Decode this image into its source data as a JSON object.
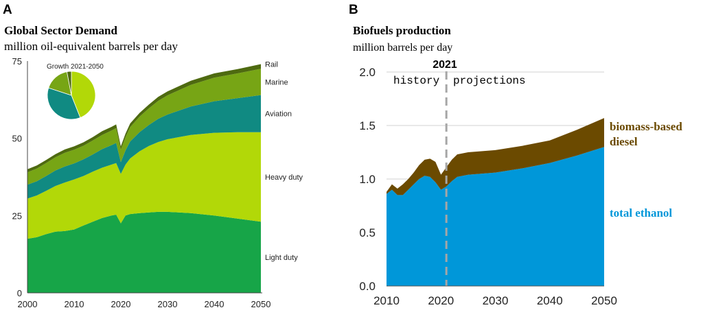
{
  "panel_a": {
    "letter": "A",
    "title": "Global Sector Demand",
    "subtitle": "million oil-equivalent barrels per day",
    "inset_label": "Growth 2021-2050",
    "colors": {
      "light_duty": "#17a548",
      "heavy_duty": "#b2d808",
      "aviation": "#108a82",
      "marine": "#77a515",
      "rail": "#4e6a10",
      "pie_outline": "#ffffff"
    }
  },
  "panel_b": {
    "letter": "B",
    "title": "Biofuels production",
    "subtitle": "million barrels per day",
    "divider_year_label": "2021",
    "history_label": "history",
    "projections_label": "projections",
    "series_labels": {
      "diesel_line1": "biomass-based",
      "diesel_line2": "diesel",
      "ethanol": "total ethanol"
    },
    "colors": {
      "ethanol": "#0097d9",
      "diesel": "#6b4a00",
      "diesel_label": "#6b4a00",
      "ethanol_label": "#0097d9",
      "divider": "#a6a6a6",
      "grid": "#d0d0d0"
    }
  },
  "chart_data": [
    {
      "id": "A",
      "type": "area",
      "stacked": true,
      "title": "Global Sector Demand",
      "subtitle": "million oil-equivalent barrels per day",
      "xlabel": "",
      "ylabel": "",
      "xlim": [
        2000,
        2050
      ],
      "ylim": [
        0,
        75
      ],
      "xticks": [
        2000,
        2010,
        2020,
        2030,
        2040,
        2050
      ],
      "yticks": [
        0,
        25,
        50,
        75
      ],
      "x": [
        2000,
        2002,
        2004,
        2006,
        2008,
        2010,
        2012,
        2014,
        2016,
        2018,
        2019,
        2020,
        2021,
        2022,
        2024,
        2026,
        2028,
        2030,
        2035,
        2040,
        2045,
        2050
      ],
      "series": [
        {
          "name": "Light duty",
          "values": [
            17.5,
            18.0,
            19.0,
            19.8,
            20.0,
            20.5,
            21.8,
            23.0,
            24.2,
            25.0,
            25.3,
            22.5,
            25.0,
            25.5,
            25.8,
            26.0,
            26.2,
            26.2,
            25.8,
            25.0,
            24.0,
            23.0
          ]
        },
        {
          "name": "Heavy duty",
          "values": [
            13.0,
            13.5,
            14.0,
            14.8,
            15.7,
            16.2,
            16.0,
            16.2,
            16.3,
            16.5,
            16.7,
            16.0,
            16.5,
            18.0,
            20.0,
            21.5,
            22.6,
            23.5,
            25.3,
            26.8,
            28.0,
            29.0
          ]
        },
        {
          "name": "Aviation",
          "values": [
            4.5,
            4.6,
            4.8,
            5.0,
            5.2,
            5.2,
            5.4,
            5.6,
            6.0,
            6.3,
            6.5,
            3.8,
            4.6,
            5.5,
            6.2,
            6.8,
            7.5,
            8.0,
            9.2,
            10.2,
            11.0,
            12.0
          ]
        },
        {
          "name": "Marine",
          "values": [
            4.0,
            4.1,
            4.2,
            4.3,
            4.4,
            4.4,
            4.4,
            4.5,
            4.6,
            4.7,
            4.8,
            4.0,
            4.3,
            4.6,
            5.0,
            5.4,
            5.8,
            6.2,
            7.0,
            7.6,
            8.0,
            8.5
          ]
        },
        {
          "name": "Rail",
          "values": [
            1.0,
            1.0,
            1.0,
            1.0,
            1.1,
            1.1,
            1.1,
            1.1,
            1.2,
            1.2,
            1.2,
            1.1,
            1.1,
            1.2,
            1.2,
            1.2,
            1.3,
            1.3,
            1.3,
            1.4,
            1.4,
            1.5
          ]
        }
      ],
      "inset_pie": {
        "title": "Growth 2021-2050",
        "slices": [
          {
            "name": "Heavy duty",
            "value": 44
          },
          {
            "name": "Aviation",
            "value": 36
          },
          {
            "name": "Marine",
            "value": 17
          },
          {
            "name": "Rail",
            "value": 3
          }
        ]
      }
    },
    {
      "id": "B",
      "type": "area",
      "stacked": true,
      "title": "Biofuels production",
      "subtitle": "million barrels per day",
      "xlabel": "",
      "ylabel": "",
      "xlim": [
        2010,
        2050
      ],
      "ylim": [
        0,
        2.0
      ],
      "xticks": [
        2010,
        2020,
        2030,
        2040,
        2050
      ],
      "yticks": [
        "0.0",
        "0.5",
        "1.0",
        "1.5",
        "2.0"
      ],
      "divider_year": 2021,
      "x": [
        2010,
        2011,
        2012,
        2013,
        2014,
        2015,
        2016,
        2017,
        2018,
        2019,
        2020,
        2021,
        2022,
        2023,
        2025,
        2030,
        2035,
        2040,
        2045,
        2050
      ],
      "series": [
        {
          "name": "total ethanol",
          "values": [
            0.86,
            0.9,
            0.85,
            0.85,
            0.9,
            0.95,
            1.0,
            1.03,
            1.02,
            0.97,
            0.9,
            0.93,
            0.98,
            1.02,
            1.04,
            1.06,
            1.1,
            1.15,
            1.22,
            1.3
          ]
        },
        {
          "name": "biomass-based diesel",
          "values": [
            0.02,
            0.05,
            0.06,
            0.1,
            0.1,
            0.11,
            0.13,
            0.15,
            0.17,
            0.19,
            0.14,
            0.18,
            0.2,
            0.21,
            0.21,
            0.21,
            0.21,
            0.21,
            0.24,
            0.27
          ]
        }
      ]
    }
  ]
}
